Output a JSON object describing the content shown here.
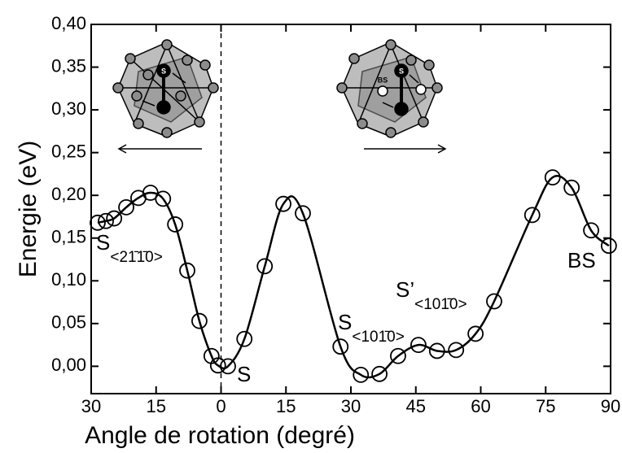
{
  "chart_data": {
    "type": "scatter",
    "x_label": "Angle de rotation (degré)",
    "y_label": "Energie (eV)",
    "series": [
      {
        "color": "#000000",
        "x": [
          -28.5,
          -26.6,
          -24.7,
          -21.9,
          -19.1,
          -16.3,
          -13.4,
          -10.6,
          -7.8,
          -5.0,
          -2.2,
          -0.7,
          1.6,
          5.4,
          10.1,
          14.4,
          18.9,
          27.6,
          32.3,
          36.6,
          40.9,
          45.6,
          49.9,
          54.3,
          58.8,
          63.1,
          71.9,
          76.6,
          81.0,
          85.5,
          89.6
        ],
        "y": [
          0.168,
          0.17,
          0.173,
          0.186,
          0.197,
          0.203,
          0.196,
          0.166,
          0.112,
          0.053,
          0.012,
          0.001,
          0.0,
          0.032,
          0.117,
          0.19,
          0.179,
          0.023,
          -0.01,
          -0.009,
          0.012,
          0.025,
          0.018,
          0.019,
          0.038,
          0.076,
          0.177,
          0.221,
          0.209,
          0.159,
          0.141
        ]
      }
    ],
    "xlim": [
      -30,
      90
    ],
    "ylim": [
      -0.032,
      0.4
    ],
    "xticks": [
      {
        "value": -30,
        "label": "30"
      },
      {
        "value": -15,
        "label": "15"
      },
      0,
      15,
      30,
      45,
      60,
      75,
      90
    ],
    "yticks": [
      {
        "value": 0,
        "label": "0,00"
      },
      {
        "value": 0.05,
        "label": "0,05"
      },
      {
        "value": 0.1,
        "label": "0,10"
      },
      {
        "value": 0.15,
        "label": "0,15"
      },
      {
        "value": 0.2,
        "label": "0,20"
      },
      {
        "value": 0.25,
        "label": "0,25"
      },
      {
        "value": 0.3,
        "label": "0,30"
      },
      {
        "value": 0.35,
        "label": "0,35"
      },
      {
        "value": 0.4,
        "label": "0,40"
      }
    ],
    "vline": 0,
    "annotations": [
      {
        "text": "S"
      },
      {
        "text": "S",
        "sub": "<21̄1̄0>"
      },
      {
        "text": "S",
        "sub": "<101̄0>"
      },
      {
        "text": "S’",
        "sub": "<101̄0>"
      },
      {
        "text": "BS"
      }
    ],
    "inset_labels": [
      "S",
      "S",
      "BS"
    ]
  }
}
